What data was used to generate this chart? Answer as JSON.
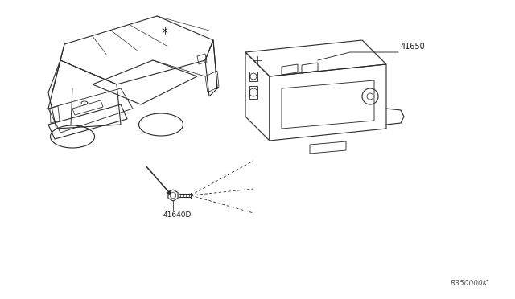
{
  "background_color": "#ffffff",
  "text_color": "#1a1a1a",
  "label_41650": "41650",
  "label_41640D": "41640D",
  "ref_code": "R350000K",
  "fig_width": 6.4,
  "fig_height": 3.72,
  "dpi": 100,
  "line_color": "#2a2a2a",
  "line_width": 0.8
}
